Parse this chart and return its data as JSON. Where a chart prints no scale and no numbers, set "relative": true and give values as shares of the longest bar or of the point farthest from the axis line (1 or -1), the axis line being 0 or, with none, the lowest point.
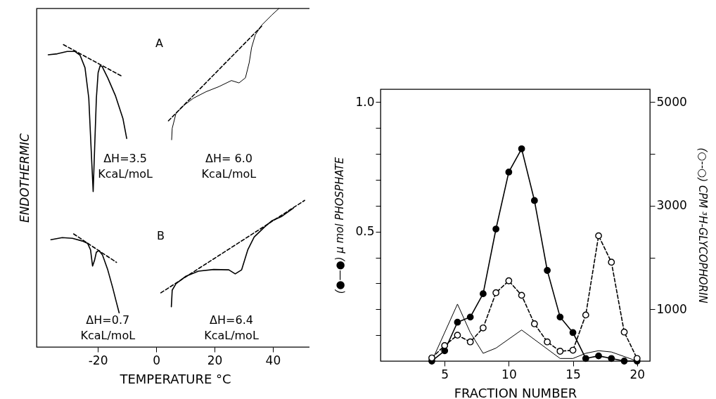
{
  "chart_data": [
    {
      "type": "line",
      "relative": true,
      "xlabel": "TEMPERATURE °C",
      "ylabel": "ENDOTHERMIC",
      "xlim": [
        -41,
        54
      ],
      "xticks": [
        -20,
        0,
        20,
        40
      ],
      "tick_labels": "x",
      "series": [
        {
          "color": "#000000",
          "line_style": "solid",
          "x": [
            -37.0,
            -33.9,
            -30.5,
            -27.9,
            -26.1,
            -24.4,
            -23.1,
            -22.3,
            -21.6,
            -21.1,
            -20.5,
            -19.9,
            -19.2,
            -18.5,
            -16.6,
            -14.0,
            -11.4,
            -10.1
          ],
          "values": [
            0.863,
            0.866,
            0.873,
            0.873,
            0.862,
            0.825,
            0.735,
            0.586,
            0.459,
            0.586,
            0.735,
            0.81,
            0.831,
            0.828,
            0.795,
            0.743,
            0.675,
            0.616
          ]
        },
        {
          "color": "#000000",
          "line_style": "dashed",
          "x": [
            -31.8,
            -11.6
          ],
          "values": [
            0.893,
            0.799
          ]
        },
        {
          "color": "#000000",
          "line_style": "solid",
          "x": [
            5.3,
            5.5,
            6.8,
            9.4,
            12.8,
            17.1,
            21.5,
            25.8,
            28.4,
            30.6,
            31.9,
            32.7,
            34.0,
            36.2,
            39.7,
            42.1
          ],
          "values": [
            0.612,
            0.646,
            0.69,
            0.713,
            0.735,
            0.754,
            0.769,
            0.787,
            0.78,
            0.795,
            0.84,
            0.884,
            0.922,
            0.951,
            0.981,
            1.0
          ]
        },
        {
          "color": "#000000",
          "line_style": "dashed",
          "x": [
            4.2,
            36.2
          ],
          "values": [
            0.668,
            0.948
          ]
        },
        {
          "color": "#000000",
          "line_style": "solid",
          "x": [
            -36.1,
            -32.2,
            -28.7,
            -25.3,
            -23.5,
            -22.5,
            -21.8,
            -21.1,
            -20.5,
            -19.6,
            -18.4,
            -16.6,
            -14.9,
            -13.6,
            -12.7
          ],
          "values": [
            0.317,
            0.323,
            0.321,
            0.313,
            0.306,
            0.287,
            0.239,
            0.257,
            0.28,
            0.285,
            0.272,
            0.228,
            0.175,
            0.131,
            0.101
          ]
        },
        {
          "color": "#000000",
          "line_style": "dashed",
          "x": [
            -28.3,
            -13.6
          ],
          "values": [
            0.334,
            0.25
          ]
        },
        {
          "color": "#000000",
          "line_style": "solid",
          "x": [
            5.2,
            5.5,
            6.8,
            10.2,
            14.5,
            19.7,
            24.9,
            27.1,
            29.3,
            31.4,
            33.6,
            37.1,
            39.7,
            43.1,
            47.0
          ],
          "values": [
            0.119,
            0.168,
            0.187,
            0.209,
            0.224,
            0.229,
            0.228,
            0.216,
            0.228,
            0.287,
            0.325,
            0.354,
            0.373,
            0.386,
            0.41
          ]
        },
        {
          "color": "#000000",
          "line_style": "dashed",
          "x": [
            1.6,
            50.9
          ],
          "values": [
            0.16,
            0.433
          ]
        }
      ],
      "annotations": [
        "A",
        "B",
        "ΔH=3.5\nKcaL/moL",
        "ΔH= 6.0\nKcaL/moL",
        "ΔH=0.7\nKcaL/moL",
        "ΔH=6.4\nKcaL/moL"
      ]
    },
    {
      "type": "line",
      "xlabel": "FRACTION NUMBER",
      "ylabel": "(●—●) µ mol PHOSPHATE",
      "y2label": "(○--○) CPM ³H-GLYCOPHORIN",
      "xlim": [
        0,
        21
      ],
      "xticks": [
        5,
        10,
        15,
        20
      ],
      "ylim": [
        0,
        1.05
      ],
      "yticks": [
        {
          "value": 0.1,
          "label": null
        },
        {
          "value": 0.2,
          "label": null
        },
        {
          "value": 0.3,
          "label": null
        },
        {
          "value": 0.4,
          "label": null
        },
        {
          "value": 0.5,
          "label": "0.5"
        },
        {
          "value": 0.6,
          "label": null
        },
        {
          "value": 0.7,
          "label": null
        },
        {
          "value": 0.8,
          "label": null
        },
        {
          "value": 0.9,
          "label": null
        },
        {
          "value": 1.0,
          "label": "1.0"
        }
      ],
      "y2lim": [
        0,
        5250
      ],
      "y2ticks": [
        1000,
        {
          "value": 2000,
          "label": null
        },
        3000,
        {
          "value": 4000,
          "label": null
        },
        5000
      ],
      "series": [
        {
          "color": "#000000",
          "line_style": "solid",
          "marker": "circle",
          "x": [
            4,
            5,
            6,
            7,
            8,
            9,
            10,
            11,
            12,
            13,
            14,
            15,
            16,
            17,
            18,
            19,
            20
          ],
          "values": [
            0.0,
            0.04,
            0.15,
            0.17,
            0.26,
            0.51,
            0.73,
            0.82,
            0.62,
            0.35,
            0.17,
            0.11,
            0.01,
            0.02,
            0.01,
            0.0,
            0.0
          ]
        },
        {
          "color": "#000000",
          "line_style": "dashed",
          "marker": "circle",
          "axis": "y2",
          "x": [
            4,
            5,
            6,
            7,
            8,
            9,
            10,
            11,
            12,
            13,
            14,
            15,
            16,
            17,
            18,
            19,
            20
          ],
          "values": [
            60,
            300,
            500,
            370,
            640,
            1320,
            1550,
            1270,
            720,
            370,
            190,
            210,
            890,
            2420,
            1910,
            560,
            50
          ]
        },
        {
          "color": "#000000",
          "line_style": "solid",
          "marker": "none",
          "x": [
            4,
            6,
            7,
            8,
            9,
            11,
            14,
            15,
            16,
            17,
            18,
            20
          ],
          "values": [
            0.0,
            0.22,
            0.11,
            0.03,
            0.05,
            0.12,
            0.01,
            0.01,
            0.03,
            0.04,
            0.035,
            0.0
          ]
        }
      ]
    }
  ]
}
